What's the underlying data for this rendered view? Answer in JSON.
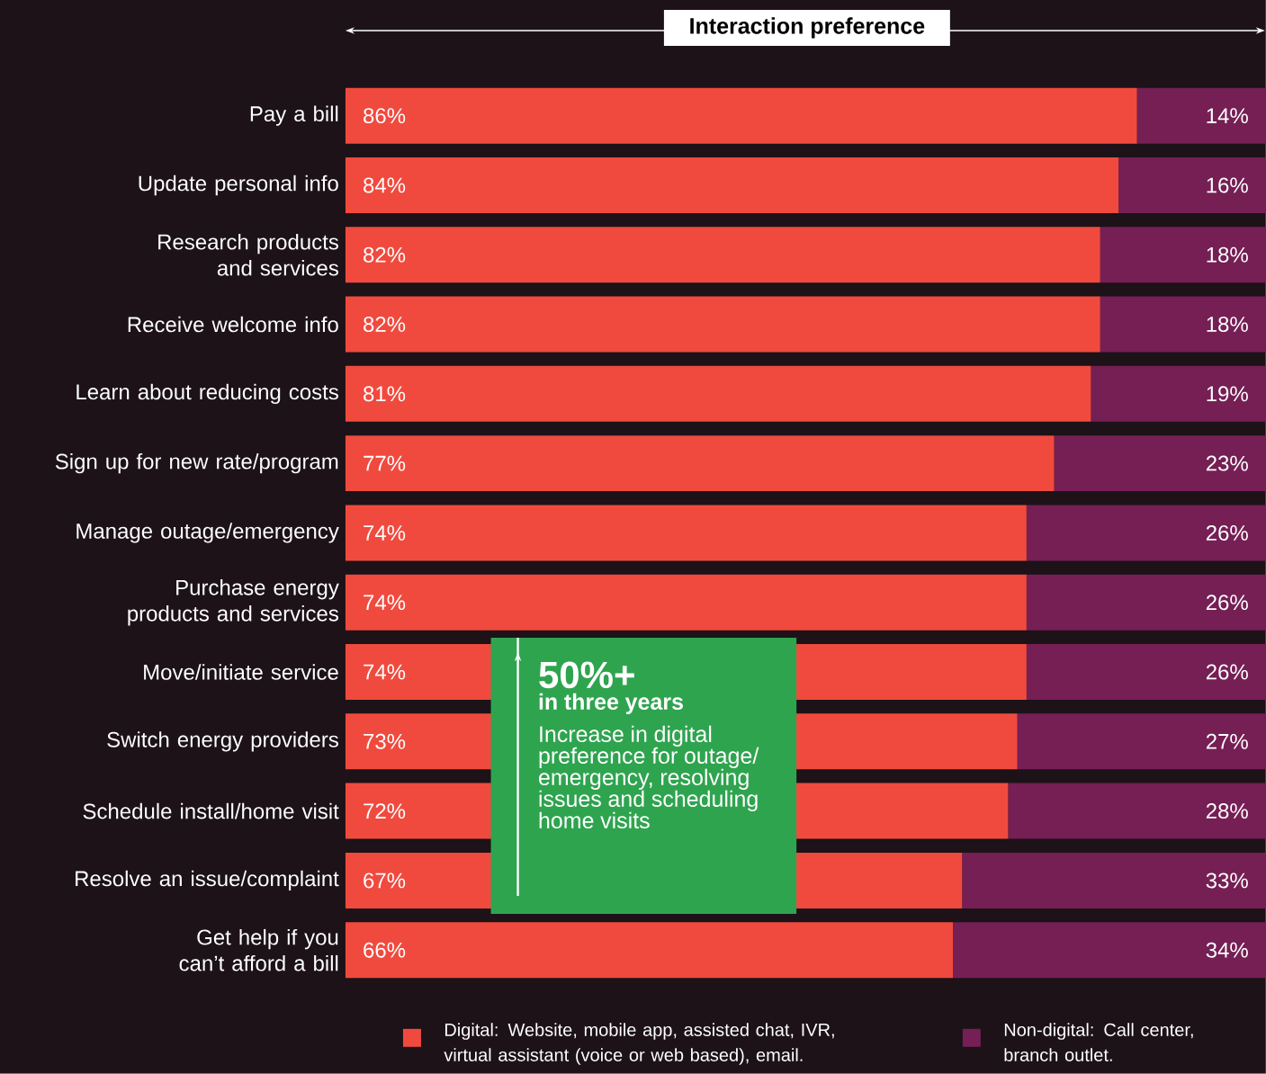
{
  "chart_data": {
    "type": "bar",
    "orientation": "horizontal",
    "stacked": true,
    "title": "Interaction preference",
    "categories": [
      "Pay a bill",
      "Update personal info",
      "Research products and services",
      "Receive welcome info",
      "Learn about reducing costs",
      "Sign up for new rate/program",
      "Manage outage/emergency",
      "Purchase energy products and services",
      "Move/initiate service",
      "Switch energy providers",
      "Schedule install/home visit",
      "Resolve an issue/complaint",
      "Get help if you can’t afford a bill"
    ],
    "series": [
      {
        "name": "Digital: Website, mobile app, assisted chat, IVR, virtual assistant (voice or web based), email.",
        "color": "#f04a3e",
        "values": [
          86,
          84,
          82,
          82,
          81,
          77,
          74,
          74,
          74,
          73,
          72,
          67,
          66
        ],
        "value_labels": [
          "86%",
          "84%",
          "82%",
          "82%",
          "81%",
          "77%",
          "74%",
          "74%",
          "74%",
          "73%",
          "72%",
          "67%",
          "66%"
        ]
      },
      {
        "name": "Non-digital: Call center, branch outlet.",
        "color": "#751f55",
        "values": [
          14,
          16,
          18,
          18,
          19,
          23,
          26,
          26,
          26,
          27,
          28,
          33,
          34
        ],
        "value_labels": [
          "14%",
          "16%",
          "18%",
          "18%",
          "19%",
          "23%",
          "26%",
          "26%",
          "26%",
          "27%",
          "28%",
          "33%",
          "34%"
        ]
      }
    ],
    "xlim": [
      0,
      100
    ],
    "tick_labels": "y",
    "legend": "bottom",
    "annotations": [
      "50%+",
      "in three years",
      "Increase in digital preference for outage/ emergency, resolving issues and scheduling home visits"
    ]
  }
}
